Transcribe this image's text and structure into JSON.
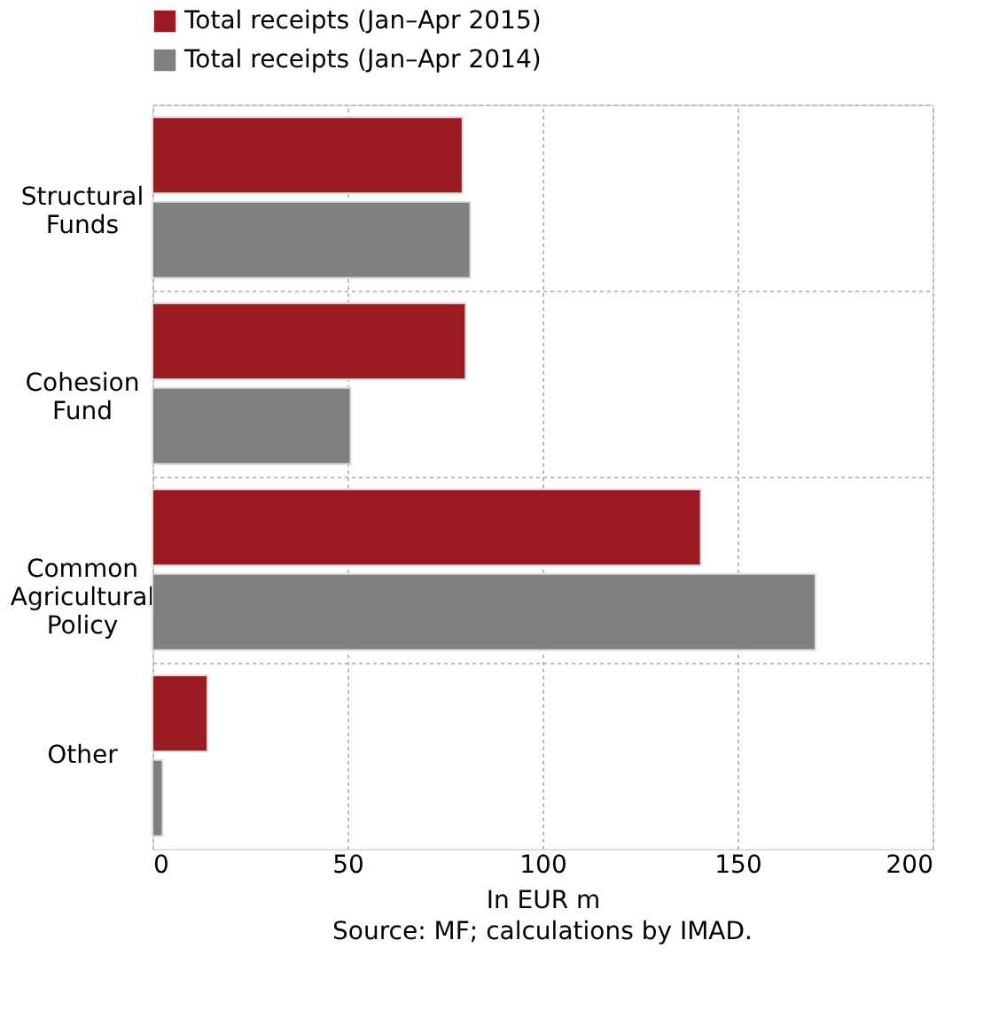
{
  "chart_data": {
    "type": "bar",
    "orientation": "horizontal",
    "categories": [
      "Structural Funds",
      "Cohesion Fund",
      "Common Agricultural Policy",
      "Other"
    ],
    "series": [
      {
        "name": "Total receipts (Jan–Apr 2015)",
        "color": "#9b1b22",
        "values": [
          79.5,
          80.3,
          140.6,
          14.1
        ]
      },
      {
        "name": "Total receipts (Jan–Apr 2014)",
        "color": "#808080",
        "values": [
          81.5,
          50.8,
          170,
          2.6
        ]
      }
    ],
    "xlim": [
      0,
      200
    ],
    "xticks": [
      0,
      50,
      100,
      150,
      200
    ],
    "xlabel": "In EUR m",
    "annotations": [
      "Source: MF; calculations by IMAD."
    ],
    "grid": true,
    "legend": "top"
  }
}
